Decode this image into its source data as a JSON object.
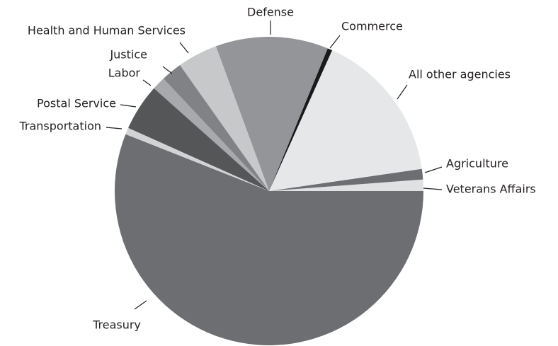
{
  "chart_data": {
    "type": "pie",
    "categories": [
      "Veterans Affairs",
      "Agriculture",
      "All other agencies",
      "Commerce",
      "Defense",
      "Health and Human Services",
      "Justice",
      "Labor",
      "Postal Service",
      "Transportation",
      "Treasury"
    ],
    "values": [
      1.2,
      1.1,
      16,
      0.5,
      11.8,
      4.2,
      2.2,
      1.4,
      4.9,
      0.7,
      56
    ],
    "colors": [
      "#e0e1e2",
      "#6d6e71",
      "#e6e7e8",
      "#1a1a1a",
      "#939598",
      "#c7c8ca",
      "#808285",
      "#a7a9ac",
      "#555658",
      "#d1d3d4",
      "#6d6e71"
    ]
  }
}
